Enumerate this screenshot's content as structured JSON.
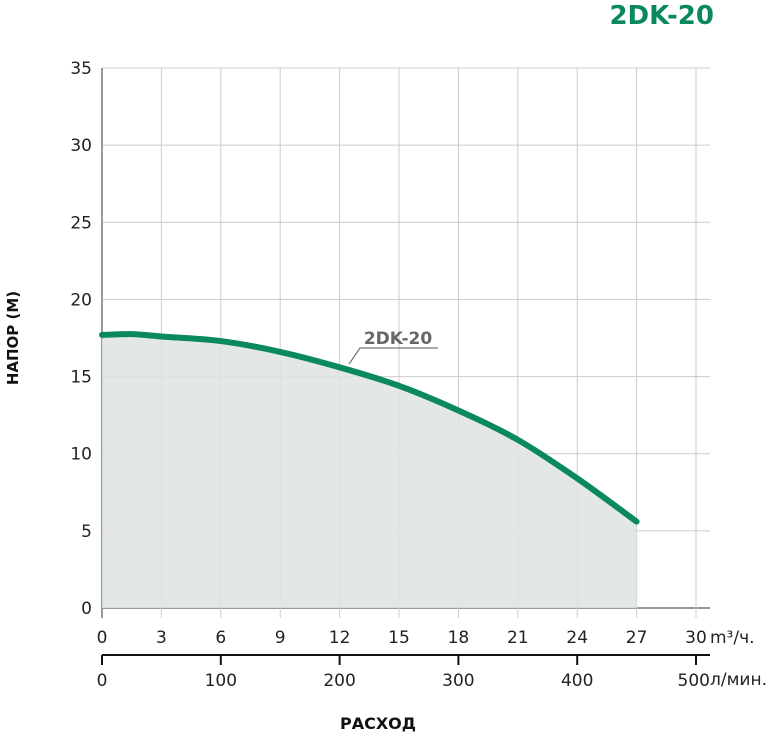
{
  "chart_data": {
    "type": "line",
    "title": "2DK-20",
    "ylabel": "НАПОР (М)",
    "xlabel": "РАСХОД",
    "ylim": [
      0,
      35
    ],
    "xlim": [
      0,
      30
    ],
    "yticks": [
      "0",
      "5",
      "10",
      "15",
      "20",
      "25",
      "30",
      "35"
    ],
    "xticks": [
      "0",
      "3",
      "6",
      "9",
      "12",
      "15",
      "18",
      "21",
      "24",
      "27",
      "30"
    ],
    "x_unit": "m³/ч.",
    "x2ticks": [
      "0",
      "100",
      "200",
      "300",
      "400",
      "500"
    ],
    "x2_unit": "л/мин.",
    "grid": true,
    "series": [
      {
        "name": "2DK-20",
        "color": "#0a8a5c",
        "x": [
          0,
          1.5,
          3,
          6,
          9,
          12,
          15,
          18,
          21,
          24,
          27
        ],
        "y": [
          17.7,
          17.75,
          17.6,
          17.3,
          16.6,
          15.6,
          14.4,
          12.8,
          10.9,
          8.4,
          5.6
        ]
      }
    ],
    "fill_color": "#dfe3e4",
    "title_color": "#0a8a5c"
  }
}
